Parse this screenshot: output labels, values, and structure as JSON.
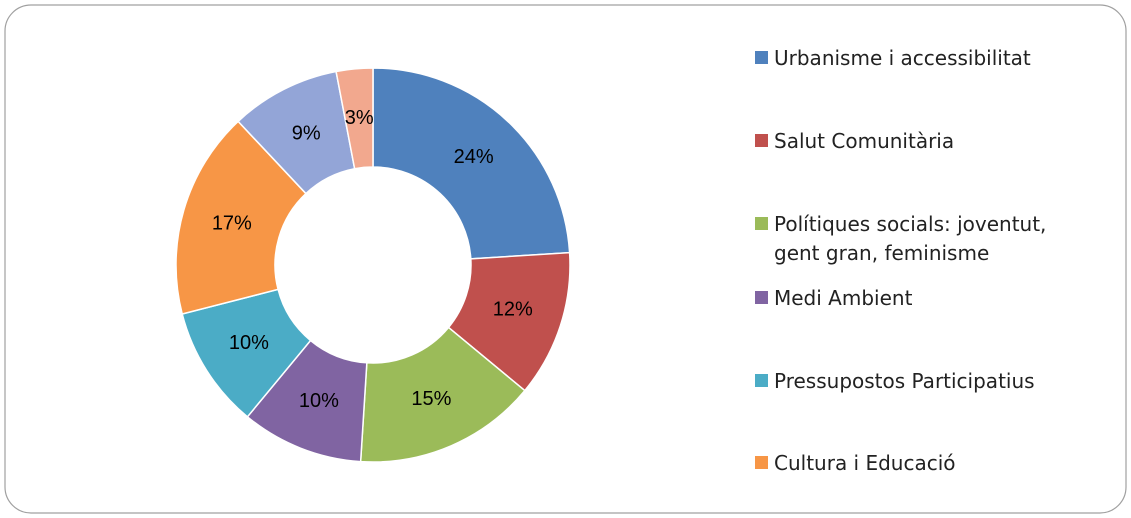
{
  "chart_data": {
    "type": "donut",
    "categories": [
      "Urbanisme i accessibilitat",
      "Salut Comunitària",
      "Polítiques socials: joventut, gent gran, feminisme",
      "Medi Ambient",
      "Pressupostos Participatius",
      "Cultura i Educació",
      null,
      null
    ],
    "values": [
      24,
      12,
      15,
      10,
      10,
      17,
      9,
      3
    ],
    "value_labels": [
      "24%",
      "12%",
      "15%",
      "10%",
      "10%",
      "17%",
      "9%",
      "3%"
    ],
    "colors": [
      "#4f81bd",
      "#c0504d",
      "#9bbb59",
      "#8064a2",
      "#4bacc6",
      "#f79646",
      "#93a5d7",
      "#f2a88e"
    ],
    "legend": "right"
  }
}
